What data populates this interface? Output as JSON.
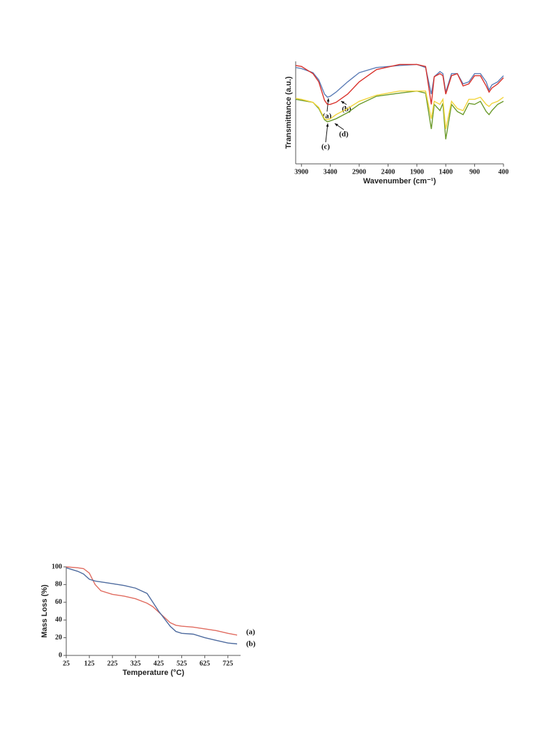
{
  "chart_data": [
    {
      "type": "line",
      "xlabel": "Wavenumber (cm⁻¹)",
      "ylabel": "Transmittance (a.u.)",
      "xlim": [
        4000,
        400
      ],
      "ylim": [
        0,
        100
      ],
      "xticks": [
        3900,
        3400,
        2900,
        2400,
        1900,
        1400,
        900,
        400
      ],
      "x": [
        4000,
        3900,
        3700,
        3600,
        3500,
        3450,
        3400,
        3300,
        3100,
        2900,
        2600,
        2200,
        1900,
        1750,
        1650,
        1600,
        1500,
        1450,
        1400,
        1300,
        1200,
        1100,
        1000,
        900,
        800,
        700,
        650,
        600,
        500,
        400
      ],
      "series": [
        {
          "name": "(a)",
          "color": "#5b7cb6",
          "values": [
            94,
            93,
            89,
            82,
            68,
            65,
            66,
            70,
            80,
            89,
            94,
            96,
            97,
            94,
            68,
            85,
            90,
            88,
            70,
            88,
            88,
            78,
            80,
            88,
            88,
            80,
            72,
            77,
            80,
            86
          ]
        },
        {
          "name": "(b)",
          "color": "#d9312b",
          "values": [
            96,
            95,
            88,
            80,
            62,
            58,
            58,
            60,
            68,
            80,
            92,
            97,
            97,
            95,
            58,
            85,
            88,
            86,
            68,
            86,
            88,
            76,
            78,
            86,
            86,
            76,
            70,
            74,
            78,
            84
          ]
        },
        {
          "name": "(c)",
          "color": "#6a9a2a",
          "values": [
            63,
            62,
            60,
            54,
            43,
            41,
            42,
            44,
            50,
            58,
            66,
            69,
            71,
            69,
            34,
            58,
            52,
            59,
            24,
            58,
            51,
            48,
            59,
            58,
            61,
            51,
            48,
            52,
            58,
            61
          ]
        },
        {
          "name": "(d)",
          "color": "#f2d43a",
          "values": [
            64,
            63,
            60,
            55,
            44,
            43,
            44,
            48,
            54,
            61,
            67,
            71,
            71,
            71,
            44,
            61,
            58,
            63,
            34,
            61,
            54,
            52,
            63,
            63,
            65,
            58,
            56,
            59,
            61,
            65
          ]
        }
      ]
    },
    {
      "type": "line",
      "xlabel": "Temperature (°C)",
      "ylabel": "Mass Loss (%)",
      "xlim": [
        25,
        780
      ],
      "ylim": [
        0,
        100
      ],
      "xticks": [
        25,
        125,
        225,
        325,
        425,
        525,
        625,
        725
      ],
      "yticks": [
        0,
        20,
        40,
        60,
        80,
        100
      ],
      "x": [
        25,
        75,
        100,
        125,
        150,
        175,
        225,
        275,
        325,
        375,
        400,
        425,
        475,
        500,
        525,
        575,
        625,
        675,
        725,
        765
      ],
      "series": [
        {
          "name": "(a)",
          "color": "#e06a5e",
          "values": [
            100,
            99,
            98,
            93,
            80,
            73,
            69,
            67,
            64,
            59,
            55,
            49,
            37,
            34,
            33,
            32,
            30,
            28,
            25,
            23
          ]
        },
        {
          "name": "(b)",
          "color": "#4d6a9e",
          "values": [
            99,
            95,
            92,
            86,
            84,
            83,
            81,
            79,
            76,
            70,
            60,
            50,
            33,
            27,
            25,
            24,
            20,
            17,
            14,
            13
          ]
        }
      ]
    }
  ]
}
